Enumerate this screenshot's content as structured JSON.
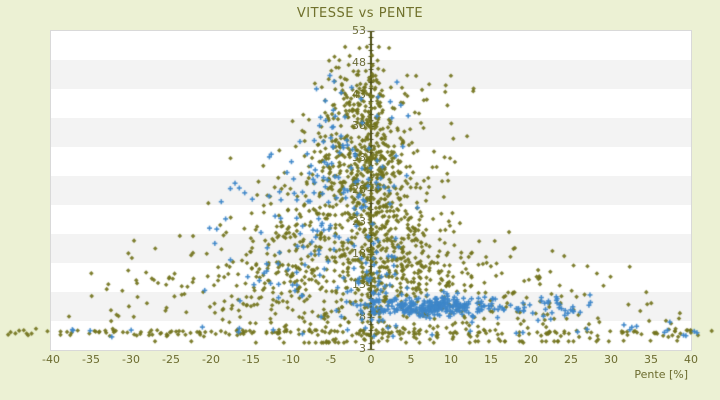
{
  "title": "VITESSE vs PENTE",
  "x_axis": {
    "label": "Pente [%]",
    "min": -40,
    "max": 40,
    "tick_step": 5,
    "ticks": [
      -40,
      -35,
      -30,
      -25,
      -20,
      -15,
      -10,
      -5,
      0,
      5,
      10,
      15,
      20,
      25,
      30,
      35,
      40
    ]
  },
  "y_axis": {
    "min": 3,
    "max": 53,
    "tick_step": 5,
    "ticks": [
      53,
      48,
      43,
      38,
      33,
      28,
      23,
      18,
      13,
      8,
      3
    ],
    "minor_tick_step": 1
  },
  "colors": {
    "page_background": "#ecf1d4",
    "band_white": "#ffffff",
    "band_gray": "#f3f3f3",
    "plot_border": "#d9d9d9",
    "title_text": "#70712c",
    "tick_text": "#6b6b2e",
    "axis_line": "#4b4c12",
    "series_olive": "#72731c",
    "series_blue": "#3e87c9"
  },
  "chart_data": {
    "type": "scatter",
    "title": "VITESSE vs PENTE",
    "xlabel": "Pente [%]",
    "ylabel": "",
    "xlim": [
      -40,
      40
    ],
    "ylim": [
      3,
      53
    ],
    "grid": "horizontal-bands",
    "legend": "none",
    "axis_line_at_x": 0,
    "seed": 7,
    "series": [
      {
        "id": "series_olive",
        "marker": "diamond",
        "color": "#72731c",
        "clusters": [
          {
            "pdist": "g",
            "p": [
              -1.5,
              2.0
            ],
            "v": [
              42,
              4.5
            ],
            "n": 120,
            "vclip": [
              4.2,
              50.5
            ],
            "vdist": "g"
          },
          {
            "pdist": "g",
            "p": [
              -2,
              3.0
            ],
            "v": [
              33,
              5.0
            ],
            "n": 220,
            "vclip": [
              4.2,
              50.0
            ],
            "vdist": "g"
          },
          {
            "pdist": "g",
            "p": [
              -6,
              4.5
            ],
            "v": [
              22,
              6.0
            ],
            "n": 260,
            "vclip": [
              4.2,
              49.0
            ],
            "vdist": "g"
          },
          {
            "pdist": "g",
            "p": [
              -9,
              6.5
            ],
            "v": [
              13,
              5.5
            ],
            "n": 230,
            "vclip": [
              4.0,
              45.0
            ],
            "vdist": "g"
          },
          {
            "pdist": "u",
            "p": [
              -38,
              -18
            ],
            "v": [
              11,
              5.0
            ],
            "n": 55,
            "vclip": [
              4.2,
              26.0
            ],
            "vdist": "g"
          },
          {
            "pdist": "g",
            "p": [
              0.2,
              1.1
            ],
            "v": [
              4,
              47
            ],
            "n": 170,
            "vdist": "u"
          },
          {
            "pdist": "g",
            "p": [
              3,
              2.5
            ],
            "v": [
              24,
              7.0
            ],
            "n": 170,
            "vclip": [
              4.2,
              48.0
            ],
            "vdist": "g"
          },
          {
            "pdist": "g",
            "p": [
              6.5,
              4.5
            ],
            "v": [
              13.5,
              5.5
            ],
            "n": 260,
            "vclip": [
              4.0,
              42.0
            ],
            "vdist": "g"
          },
          {
            "pdist": "u",
            "p": [
              13,
              30
            ],
            "v": [
              9.5,
              4.5
            ],
            "n": 90,
            "vclip": [
              4.2,
              24.0
            ],
            "vdist": "g"
          },
          {
            "pdist": "u",
            "p": [
              29,
              39
            ],
            "v": [
              8,
              4.0
            ],
            "n": 16,
            "vclip": [
              4.3,
              21.0
            ],
            "vdist": "g"
          },
          {
            "pdist": "u",
            "p": [
              2,
              13
            ],
            "v": [
              29,
              46
            ],
            "n": 40,
            "vdist": "u"
          },
          {
            "pdist": "u",
            "p": [
              -45.5,
              43
            ],
            "v": [
              5.55,
              0.3
            ],
            "n": 150,
            "vclip": [
              4.9,
              6.6
            ],
            "vdist": "g"
          },
          {
            "pdist": "u",
            "p": [
              -26,
              6
            ],
            "v": [
              5.6,
              0.3
            ],
            "n": 30,
            "vclip": [
              4.9,
              6.6
            ],
            "vdist": "g"
          }
        ]
      },
      {
        "id": "series_blue",
        "marker": "plus",
        "color": "#3e87c9",
        "clusters": [
          {
            "pdist": "g",
            "p": [
              6.5,
              3.8
            ],
            "pclip": [
              0.3,
              20
            ],
            "v": [
              9.7,
              0.85
            ],
            "n": 210,
            "vclip": [
              7.5,
              12.0
            ],
            "vdist": "g"
          },
          {
            "pdist": "g",
            "p": [
              13,
              5.5
            ],
            "pclip": [
              1,
              26
            ],
            "v": [
              9.4,
              1.0
            ],
            "n": 70,
            "vclip": [
              7.2,
              12.2
            ],
            "vdist": "g"
          },
          {
            "pdist": "u",
            "p": [
              19,
              27.5
            ],
            "v": [
              9.5,
              0.9
            ],
            "n": 20,
            "vclip": [
              7.5,
              11.5
            ],
            "vdist": "g"
          },
          {
            "pdist": "g",
            "p": [
              -4,
              3.5
            ],
            "v": [
              31,
              7.0
            ],
            "n": 95,
            "vclip": [
              12,
              46
            ],
            "vdist": "g"
          },
          {
            "pdist": "g",
            "p": [
              -7.5,
              4.5
            ],
            "v": [
              20,
              6.5
            ],
            "n": 60,
            "vclip": [
              6,
              40
            ],
            "vdist": "g"
          },
          {
            "pdist": "g",
            "p": [
              1.2,
              2.2
            ],
            "v": [
              12.5,
              4.0
            ],
            "n": 55,
            "vclip": [
              5,
              28
            ],
            "vdist": "g"
          },
          {
            "pdist": "u",
            "p": [
              -21,
              -9
            ],
            "v": [
              9,
              30
            ],
            "n": 16,
            "vdist": "u"
          },
          {
            "pdist": "u",
            "p": [
              -41,
              41
            ],
            "v": [
              5.7,
              0.4
            ],
            "n": 20,
            "vclip": [
              4.9,
              6.8
            ],
            "vdist": "g"
          },
          {
            "pdist": "u",
            "p": [
              27,
              41
            ],
            "v": [
              5.9,
              0.9
            ],
            "n": 8,
            "vclip": [
              4.9,
              8.0
            ],
            "vdist": "g"
          },
          {
            "pdist": "u",
            "p": [
              -7,
              5
            ],
            "v": [
              37,
              45.5
            ],
            "n": 12,
            "vdist": "u"
          }
        ]
      }
    ]
  }
}
